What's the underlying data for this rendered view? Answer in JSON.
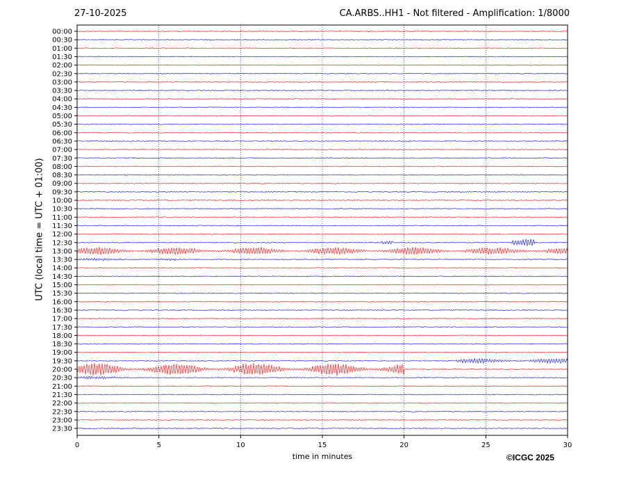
{
  "header": {
    "date": "27-10-2025",
    "title": "CA.ARBS..HH1 - Not filtered - Amplification: 1/8000"
  },
  "footer": {
    "copyright": "©ICGC 2025"
  },
  "chart_data": {
    "type": "line",
    "title": "CA.ARBS..HH1 - Not filtered - Amplification: 1/8000",
    "xlabel": "time in minutes",
    "ylabel": "UTC (local time = UTC + 01:00)",
    "xlim": [
      0,
      30
    ],
    "xticks": [
      0,
      5,
      10,
      15,
      20,
      25,
      30
    ],
    "rows": [
      "00:00",
      "00:30",
      "01:00",
      "01:30",
      "02:00",
      "02:30",
      "03:00",
      "03:30",
      "04:00",
      "04:30",
      "05:00",
      "05:30",
      "06:00",
      "06:30",
      "07:00",
      "07:30",
      "08:00",
      "08:30",
      "09:00",
      "09:30",
      "10:00",
      "10:30",
      "11:00",
      "11:30",
      "12:00",
      "12:30",
      "13:00",
      "13:30",
      "14:00",
      "14:30",
      "15:00",
      "15:30",
      "16:00",
      "16:30",
      "17:00",
      "17:30",
      "18:00",
      "18:30",
      "19:00",
      "19:30",
      "20:00",
      "20:30",
      "21:00",
      "21:30",
      "22:00",
      "22:30",
      "23:00",
      "23:30"
    ],
    "colors": {
      "even_rows": "#ff0000",
      "odd_rows": "#0000ff",
      "grid": "#0000aa"
    },
    "grid": "vertical dotted",
    "events": [
      {
        "row": "12:30",
        "start_min": 18.6,
        "end_min": 19.3,
        "amplitude": 3
      },
      {
        "row": "12:30",
        "start_min": 26.6,
        "end_min": 28.0,
        "amplitude": 6
      },
      {
        "row": "13:00",
        "start_min": 0.0,
        "end_min": 30.0,
        "amplitude": 6
      },
      {
        "row": "13:30",
        "start_min": 0.0,
        "end_min": 6.0,
        "amplitude": 1.5
      },
      {
        "row": "19:30",
        "start_min": 23.2,
        "end_min": 30.0,
        "amplitude": 4
      },
      {
        "row": "20:00",
        "start_min": 0.0,
        "end_min": 20.0,
        "amplitude": 10
      },
      {
        "row": "20:30",
        "start_min": 0.0,
        "end_min": 4.0,
        "amplitude": 2
      }
    ]
  }
}
